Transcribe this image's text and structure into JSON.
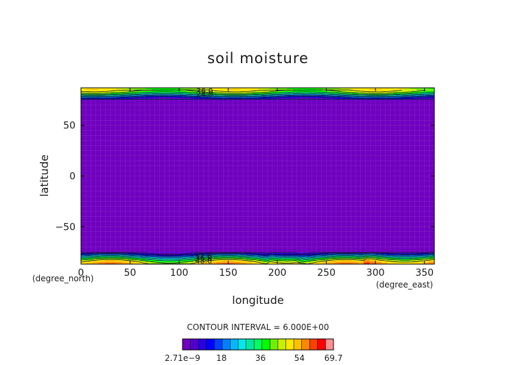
{
  "chart_data": {
    "type": "heatmap",
    "title": "soil moisture",
    "xlabel": "longitude",
    "ylabel": "latitude",
    "x_units": "(degree_east)",
    "y_units": "(degree_north)",
    "xlim": [
      0,
      360
    ],
    "ylim": [
      -87,
      87
    ],
    "x_ticks": [
      0,
      50,
      100,
      150,
      200,
      250,
      300,
      350
    ],
    "y_ticks": [
      -50,
      0,
      50
    ],
    "contour_interval_text": "CONTOUR INTERVAL = 6.000E+00",
    "contour_labels": [
      {
        "text": "36.0",
        "lon": 126,
        "lat": 84
      },
      {
        "text": "24.0",
        "lon": 126,
        "lat": 81
      },
      {
        "text": "12.0",
        "lon": 125,
        "lat": -78.5
      },
      {
        "text": "36.0",
        "lon": 125,
        "lat": -81
      },
      {
        "text": "48.0",
        "lon": 125,
        "lat": -83.5
      }
    ],
    "colorbar": {
      "min": 0,
      "max": 69.7,
      "tick_labels": [
        "2.71e-9",
        "18",
        "36",
        "54",
        "69.7"
      ],
      "tick_values": [
        0,
        18,
        36,
        54,
        69.7
      ],
      "colors": [
        "#7000c0",
        "#5000d0",
        "#2a00e0",
        "#0000ff",
        "#0040ff",
        "#0080ff",
        "#00b8ff",
        "#00e8e8",
        "#00e8a0",
        "#00ff60",
        "#00ff00",
        "#70f000",
        "#c8f000",
        "#ffe800",
        "#ffc000",
        "#ff8800",
        "#ff4000",
        "#ff0000",
        "#ff9090"
      ]
    },
    "field_profile": {
      "lat": [
        -87,
        -85,
        -83,
        -81,
        -79,
        -77,
        -75,
        -73,
        73,
        75,
        77,
        79,
        81,
        83,
        85,
        87
      ],
      "value": [
        52,
        48,
        42,
        34,
        24,
        12,
        4,
        0,
        0,
        4,
        10,
        22,
        34,
        42,
        46,
        44
      ]
    }
  }
}
